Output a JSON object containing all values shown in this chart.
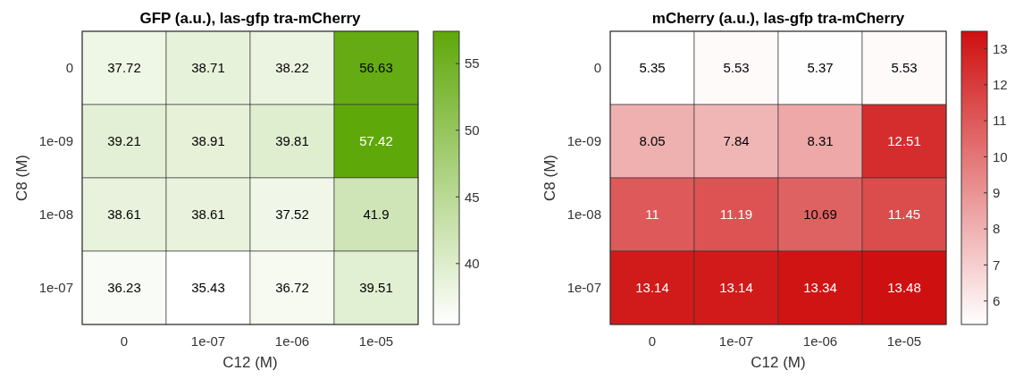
{
  "chart_data": [
    {
      "type": "heatmap",
      "title": "GFP (a.u.), las-gfp tra-mCherry",
      "xlabel": "C12 (M)",
      "ylabel": "C8 (M)",
      "categories": [
        "0",
        "1e-07",
        "1e-06",
        "1e-05"
      ],
      "y_categories": [
        "0",
        "1e-09",
        "1e-08",
        "1e-07"
      ],
      "cells": [
        [
          37.72,
          38.71,
          38.22,
          56.63
        ],
        [
          39.21,
          38.91,
          39.81,
          57.42
        ],
        [
          38.61,
          38.61,
          37.52,
          41.9
        ],
        [
          36.23,
          35.43,
          36.72,
          39.51
        ]
      ],
      "data_labels": true,
      "colors": [
        "#ffffff",
        "#5fa80a"
      ],
      "clim": [
        35.43,
        57.42
      ],
      "cticks": [
        40,
        45,
        50,
        55
      ]
    },
    {
      "type": "heatmap",
      "title": "mCherry (a.u.), las-gfp tra-mCherry",
      "xlabel": "C12 (M)",
      "ylabel": "C8 (M)",
      "categories": [
        "0",
        "1e-07",
        "1e-06",
        "1e-05"
      ],
      "y_categories": [
        "0",
        "1e-09",
        "1e-08",
        "1e-07"
      ],
      "cells": [
        [
          5.35,
          5.53,
          5.37,
          5.53
        ],
        [
          8.05,
          7.84,
          8.31,
          12.51
        ],
        [
          11,
          11.19,
          10.69,
          11.45
        ],
        [
          13.14,
          13.14,
          13.34,
          13.48
        ]
      ],
      "data_labels": true,
      "colors": [
        "#ffffff",
        "#cf1010"
      ],
      "clim": [
        5.35,
        13.48
      ],
      "cticks": [
        6,
        7,
        8,
        9,
        10,
        11,
        12,
        13
      ]
    }
  ]
}
